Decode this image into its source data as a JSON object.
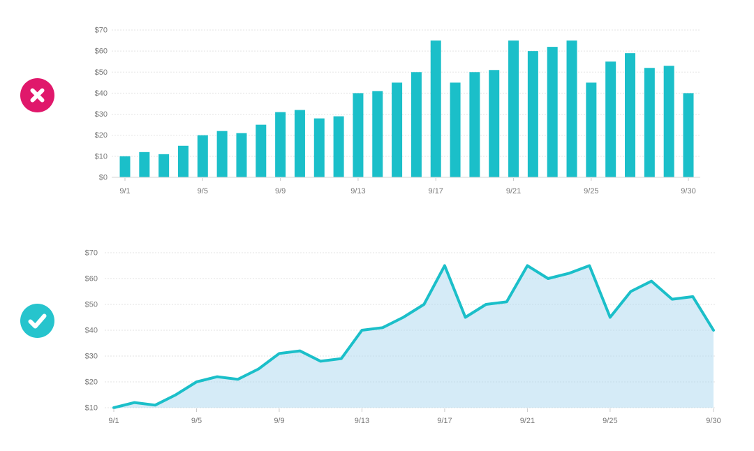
{
  "page": {
    "background": "#ffffff"
  },
  "badges": {
    "wrong": {
      "meaning": "do-not-do-this",
      "color": "#E0186B",
      "glyph_color": "#ffffff"
    },
    "right": {
      "meaning": "do-this",
      "color": "#26C4CD",
      "glyph_color": "#ffffff"
    }
  },
  "chart_data": [
    {
      "type": "bar",
      "categories": [
        "9/1",
        "9/2",
        "9/3",
        "9/4",
        "9/5",
        "9/6",
        "9/7",
        "9/8",
        "9/9",
        "9/10",
        "9/11",
        "9/12",
        "9/13",
        "9/14",
        "9/15",
        "9/16",
        "9/17",
        "9/18",
        "9/19",
        "9/20",
        "9/21",
        "9/22",
        "9/23",
        "9/24",
        "9/25",
        "9/26",
        "9/27",
        "9/28",
        "9/29",
        "9/30"
      ],
      "values": [
        10,
        12,
        11,
        15,
        20,
        22,
        21,
        25,
        31,
        32,
        28,
        29,
        40,
        41,
        45,
        50,
        65,
        45,
        50,
        51,
        65,
        60,
        62,
        65,
        45,
        55,
        59,
        52,
        53,
        40
      ],
      "x_tick_labels": [
        "9/1",
        "9/5",
        "9/9",
        "9/13",
        "9/17",
        "9/21",
        "9/25",
        "9/30"
      ],
      "y_tick_labels": [
        "$0",
        "$10",
        "$20",
        "$30",
        "$40",
        "$50",
        "$60",
        "$70"
      ],
      "ylim": [
        0,
        70
      ],
      "grid": true,
      "bar_color": "#1BBFC9",
      "grid_color": "#E3E3E3",
      "axis_color": "#D6D6D6",
      "tick_color": "#C9C9C9",
      "text_color": "#777777"
    },
    {
      "type": "area",
      "categories": [
        "9/1",
        "9/2",
        "9/3",
        "9/4",
        "9/5",
        "9/6",
        "9/7",
        "9/8",
        "9/9",
        "9/10",
        "9/11",
        "9/12",
        "9/13",
        "9/14",
        "9/15",
        "9/16",
        "9/17",
        "9/18",
        "9/19",
        "9/20",
        "9/21",
        "9/22",
        "9/23",
        "9/24",
        "9/25",
        "9/26",
        "9/27",
        "9/28",
        "9/29",
        "9/30"
      ],
      "values": [
        10,
        12,
        11,
        15,
        20,
        22,
        21,
        25,
        31,
        32,
        28,
        29,
        40,
        41,
        45,
        50,
        65,
        45,
        50,
        51,
        65,
        60,
        62,
        65,
        45,
        55,
        59,
        52,
        53,
        40
      ],
      "x_tick_labels": [
        "9/1",
        "9/5",
        "9/9",
        "9/13",
        "9/17",
        "9/21",
        "9/25",
        "9/30"
      ],
      "y_tick_labels": [
        "$10",
        "$20",
        "$30",
        "$40",
        "$50",
        "$60",
        "$70"
      ],
      "ylim": [
        10,
        70
      ],
      "grid": true,
      "line_color": "#1BBFC9",
      "fill_color": "rgba(178,219,241,0.55)",
      "grid_color": "#E3E3E3",
      "tick_color": "#C9C9C9",
      "text_color": "#777777"
    }
  ]
}
